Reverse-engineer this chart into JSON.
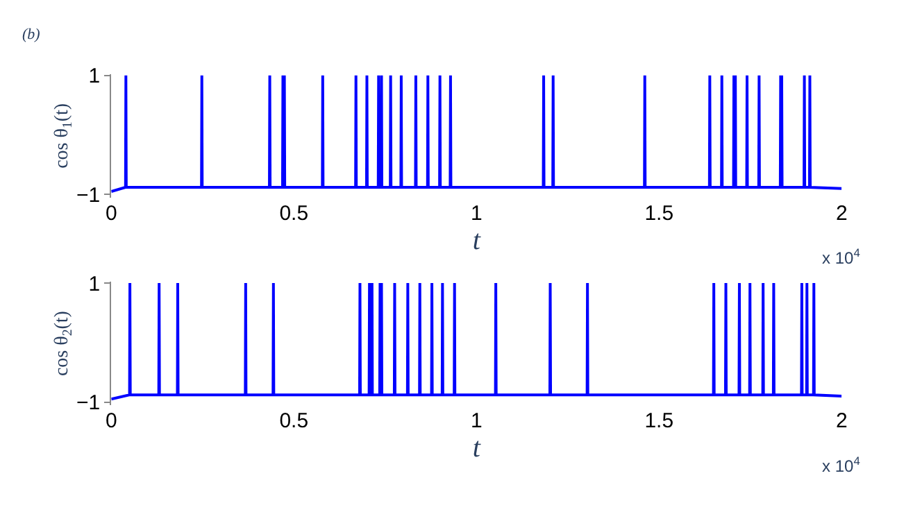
{
  "chart_data": [
    {
      "type": "line",
      "title": "(b)",
      "ylabel": "cos θ$_{1}$(t)",
      "xlabel": "t",
      "annotations": [
        "x 10$^{4}$"
      ],
      "xlim": [
        0,
        2
      ],
      "xticks": [
        0,
        0.5,
        1,
        1.5,
        2
      ],
      "ylim": [
        -1.05,
        1.02
      ],
      "yticks": [
        {
          "value": -1,
          "label": "−1"
        },
        1
      ],
      "line_style": "solid",
      "series": [
        {
          "color": "#0000ff",
          "x": [
            0,
            0.039,
            0.04,
            0.041,
            0.247,
            0.248,
            0.249,
            0.433,
            0.434,
            0.435,
            0.469,
            0.47,
            0.471,
            0.473,
            0.474,
            0.475,
            0.578,
            0.579,
            0.58,
            0.669,
            0.67,
            0.671,
            0.699,
            0.7,
            0.701,
            0.731,
            0.732,
            0.733,
            0.739,
            0.74,
            0.741,
            0.764,
            0.765,
            0.766,
            0.793,
            0.794,
            0.795,
            0.833,
            0.834,
            0.835,
            0.866,
            0.867,
            0.868,
            0.899,
            0.9,
            0.901,
            0.928,
            0.929,
            0.93,
            1.183,
            1.184,
            1.185,
            1.209,
            1.21,
            1.211,
            1.46,
            1.461,
            1.462,
            1.638,
            1.639,
            1.64,
            1.671,
            1.672,
            1.673,
            1.704,
            1.705,
            1.706,
            1.708,
            1.709,
            1.71,
            1.74,
            1.741,
            1.742,
            1.773,
            1.774,
            1.775,
            1.832,
            1.833,
            1.834,
            1.835,
            1.836,
            1.837,
            1.897,
            1.898,
            1.899,
            1.912,
            1.913,
            1.914,
            2
          ],
          "values": [
            -0.95,
            -0.88,
            1,
            -0.88,
            -0.88,
            1,
            -0.88,
            -0.88,
            1,
            -0.88,
            -0.88,
            1,
            -0.88,
            -0.88,
            1,
            -0.88,
            -0.88,
            1,
            -0.88,
            -0.88,
            1,
            -0.88,
            -0.88,
            1,
            -0.88,
            -0.88,
            1,
            -0.88,
            -0.88,
            1,
            -0.88,
            -0.88,
            1,
            -0.88,
            -0.88,
            1,
            -0.88,
            -0.88,
            1,
            -0.88,
            -0.88,
            1,
            -0.88,
            -0.88,
            1,
            -0.88,
            -0.88,
            1,
            -0.88,
            -0.88,
            1,
            -0.88,
            -0.88,
            1,
            -0.88,
            -0.88,
            1,
            -0.88,
            -0.88,
            1,
            -0.88,
            -0.88,
            1,
            -0.88,
            -0.88,
            1,
            -0.88,
            -0.88,
            1,
            -0.88,
            -0.88,
            1,
            -0.88,
            -0.88,
            1,
            -0.88,
            -0.88,
            1,
            -0.88,
            -0.88,
            1,
            -0.88,
            -0.88,
            1,
            -0.88,
            -0.88,
            1,
            -0.88,
            -0.9
          ]
        }
      ]
    },
    {
      "type": "line",
      "ylabel": "cos θ$_{2}$(t)",
      "xlabel": "t",
      "annotations": [
        "x 10$^{4}$"
      ],
      "xlim": [
        0,
        2
      ],
      "xticks": [
        0,
        0.5,
        1,
        1.5,
        2
      ],
      "ylim": [
        -1.05,
        1.02
      ],
      "yticks": [
        {
          "value": -1,
          "label": "−1"
        },
        1
      ],
      "line_style": "solid",
      "series": [
        {
          "color": "#0000ff",
          "x": [
            0,
            0.05,
            0.051,
            0.052,
            0.13,
            0.131,
            0.132,
            0.181,
            0.182,
            0.183,
            0.367,
            0.368,
            0.369,
            0.443,
            0.444,
            0.445,
            0.68,
            0.681,
            0.682,
            0.706,
            0.707,
            0.708,
            0.713,
            0.714,
            0.715,
            0.735,
            0.736,
            0.737,
            0.739,
            0.74,
            0.741,
            0.775,
            0.776,
            0.777,
            0.811,
            0.812,
            0.813,
            0.844,
            0.845,
            0.846,
            0.877,
            0.878,
            0.879,
            0.906,
            0.907,
            0.908,
            0.939,
            0.94,
            0.941,
            1.052,
            1.053,
            1.054,
            1.201,
            1.202,
            1.203,
            1.303,
            1.304,
            1.305,
            1.649,
            1.65,
            1.651,
            1.682,
            1.683,
            1.684,
            1.719,
            1.72,
            1.721,
            1.748,
            1.749,
            1.75,
            1.784,
            1.785,
            1.786,
            1.813,
            1.814,
            1.815,
            1.89,
            1.891,
            1.892,
            1.904,
            1.905,
            1.906,
            1.923,
            1.924,
            1.925,
            2
          ],
          "values": [
            -0.95,
            -0.88,
            1,
            -0.88,
            -0.88,
            1,
            -0.88,
            -0.88,
            1,
            -0.88,
            -0.88,
            1,
            -0.88,
            -0.88,
            1,
            -0.88,
            -0.88,
            1,
            -0.88,
            -0.88,
            1,
            -0.88,
            -0.88,
            1,
            -0.88,
            -0.88,
            1,
            -0.88,
            -0.88,
            1,
            -0.88,
            -0.88,
            1,
            -0.88,
            -0.88,
            1,
            -0.88,
            -0.88,
            1,
            -0.88,
            -0.88,
            1,
            -0.88,
            -0.88,
            1,
            -0.88,
            -0.88,
            1,
            -0.88,
            -0.88,
            1,
            -0.88,
            -0.88,
            1,
            -0.88,
            -0.88,
            1,
            -0.88,
            -0.88,
            1,
            -0.88,
            -0.88,
            1,
            -0.88,
            -0.88,
            1,
            -0.88,
            -0.88,
            1,
            -0.88,
            -0.88,
            1,
            -0.88,
            -0.88,
            1,
            -0.88,
            -0.88,
            1,
            -0.88,
            -0.88,
            1,
            -0.88,
            -0.88,
            1,
            -0.88,
            -0.9
          ]
        }
      ]
    }
  ]
}
